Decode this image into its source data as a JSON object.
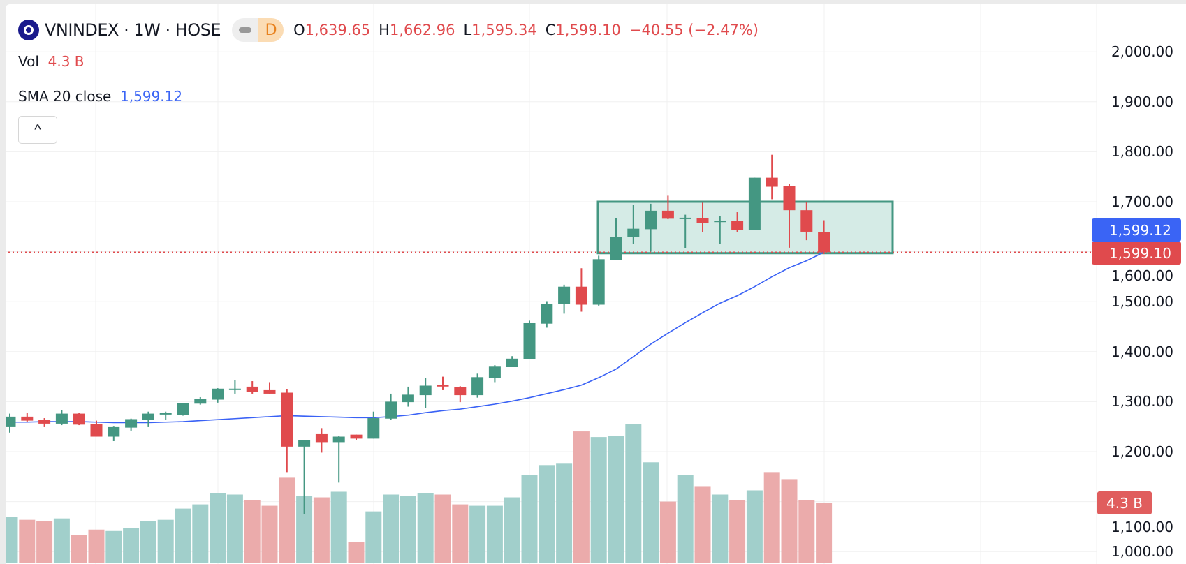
{
  "header": {
    "symbol_title": "VNINDEX · 1W · HOSE",
    "badge_label": "D",
    "ohlc": {
      "o_label": "O",
      "o": "1,639.65",
      "h_label": "H",
      "h": "1,662.96",
      "l_label": "L",
      "l": "1,595.34",
      "c_label": "C",
      "c": "1,599.10",
      "change": "−40.55 (−2.47%)"
    },
    "vol_label": "Vol",
    "vol_value": "4.3 B",
    "sma_label": "SMA 20 close",
    "sma_value": "1,599.12",
    "collapse_icon": "^"
  },
  "price_labels": {
    "sma": "1,599.12",
    "close": "1,599.10",
    "volume": "4.3 B"
  },
  "colors": {
    "up": "#449782",
    "down": "#e04a4d",
    "vol_up": "#a1cfcb",
    "vol_down": "#ebabab",
    "sma": "#3961f5",
    "box_fill": "#d5ebe6",
    "box_border": "#449782"
  },
  "chart_data": {
    "type": "candlestick",
    "title": "VNINDEX · 1W · HOSE",
    "y_ticks": [
      "2,000.00",
      "1,900.00",
      "1,800.00",
      "1,700.00",
      "1,600.00",
      "1,500.00",
      "1,400.00",
      "1,300.00",
      "1,200.00",
      "1,100.00",
      "1,000.00"
    ],
    "y_tick_values": [
      2000,
      1900,
      1800,
      1700,
      1600,
      1500,
      1400,
      1300,
      1200,
      1100,
      1000
    ],
    "ylim": [
      1000,
      2000
    ],
    "grid": true,
    "ohlc": [
      [
        1249,
        1276,
        1238,
        1270
      ],
      [
        1270,
        1277,
        1260,
        1262
      ],
      [
        1263,
        1267,
        1249,
        1256
      ],
      [
        1256,
        1283,
        1253,
        1276
      ],
      [
        1276,
        1277,
        1253,
        1254
      ],
      [
        1255,
        1262,
        1230,
        1230
      ],
      [
        1230,
        1250,
        1221,
        1249
      ],
      [
        1248,
        1266,
        1242,
        1265
      ],
      [
        1263,
        1280,
        1249,
        1276
      ],
      [
        1276,
        1280,
        1263,
        1277
      ],
      [
        1274,
        1297,
        1272,
        1297
      ],
      [
        1296,
        1309,
        1294,
        1305
      ],
      [
        1304,
        1327,
        1298,
        1326
      ],
      [
        1325,
        1343,
        1316,
        1326
      ],
      [
        1330,
        1341,
        1316,
        1320
      ],
      [
        1323,
        1339,
        1316,
        1316
      ],
      [
        1318,
        1325,
        1159,
        1210
      ],
      [
        1210,
        1223,
        1075,
        1223
      ],
      [
        1235,
        1247,
        1198,
        1219
      ],
      [
        1219,
        1231,
        1138,
        1230
      ],
      [
        1234,
        1234,
        1223,
        1226
      ],
      [
        1226,
        1280,
        1226,
        1267
      ],
      [
        1266,
        1316,
        1264,
        1300
      ],
      [
        1299,
        1330,
        1290,
        1314
      ],
      [
        1313,
        1347,
        1288,
        1332
      ],
      [
        1333,
        1350,
        1323,
        1332
      ],
      [
        1329,
        1331,
        1299,
        1313
      ],
      [
        1313,
        1356,
        1308,
        1349
      ],
      [
        1348,
        1373,
        1339,
        1370
      ],
      [
        1369,
        1391,
        1369,
        1386
      ],
      [
        1385,
        1462,
        1385,
        1457
      ],
      [
        1456,
        1501,
        1448,
        1496
      ],
      [
        1495,
        1534,
        1476,
        1530
      ],
      [
        1530,
        1567,
        1480,
        1494
      ],
      [
        1494,
        1592,
        1492,
        1585
      ],
      [
        1584,
        1667,
        1584,
        1630
      ],
      [
        1629,
        1693,
        1615,
        1646
      ],
      [
        1645,
        1696,
        1600,
        1682
      ],
      [
        1682,
        1712,
        1665,
        1666
      ],
      [
        1667,
        1674,
        1607,
        1668
      ],
      [
        1667,
        1698,
        1639,
        1657
      ],
      [
        1661,
        1671,
        1616,
        1662
      ],
      [
        1661,
        1679,
        1639,
        1644
      ],
      [
        1644,
        1748,
        1643,
        1748
      ],
      [
        1748,
        1794,
        1705,
        1730
      ],
      [
        1731,
        1735,
        1608,
        1683
      ],
      [
        1683,
        1700,
        1623,
        1640
      ],
      [
        1639.65,
        1662.96,
        1595.34,
        1599.1
      ]
    ],
    "volume_billions": [
      3.3,
      3.1,
      3.0,
      3.2,
      2.0,
      2.4,
      2.3,
      2.5,
      3.0,
      3.1,
      3.9,
      4.2,
      5.0,
      4.9,
      4.5,
      4.1,
      6.1,
      4.8,
      4.7,
      5.1,
      1.5,
      3.7,
      4.9,
      4.8,
      5.0,
      4.9,
      4.2,
      4.1,
      4.1,
      4.7,
      6.3,
      7.0,
      7.1,
      9.4,
      9.0,
      9.1,
      9.9,
      7.2,
      4.4,
      6.3,
      5.5,
      4.9,
      4.5,
      5.2,
      6.5,
      6.0,
      4.5,
      4.3
    ],
    "sma20": [
      1259,
      1259,
      1260,
      1260,
      1260,
      1259,
      1258,
      1258,
      1258,
      1259,
      1260,
      1262,
      1264,
      1266,
      1268,
      1270,
      1272,
      1271,
      1270,
      1269,
      1268,
      1268,
      1270,
      1273,
      1278,
      1282,
      1285,
      1290,
      1295,
      1301,
      1308,
      1316,
      1324,
      1333,
      1348,
      1365,
      1390,
      1415,
      1437,
      1458,
      1478,
      1497,
      1512,
      1530,
      1550,
      1568,
      1582,
      1599.12
    ],
    "rectangle": {
      "from_index": 35,
      "to_index": 51,
      "top": 1700,
      "bottom": 1597
    },
    "last_price_line": 1599.1
  }
}
